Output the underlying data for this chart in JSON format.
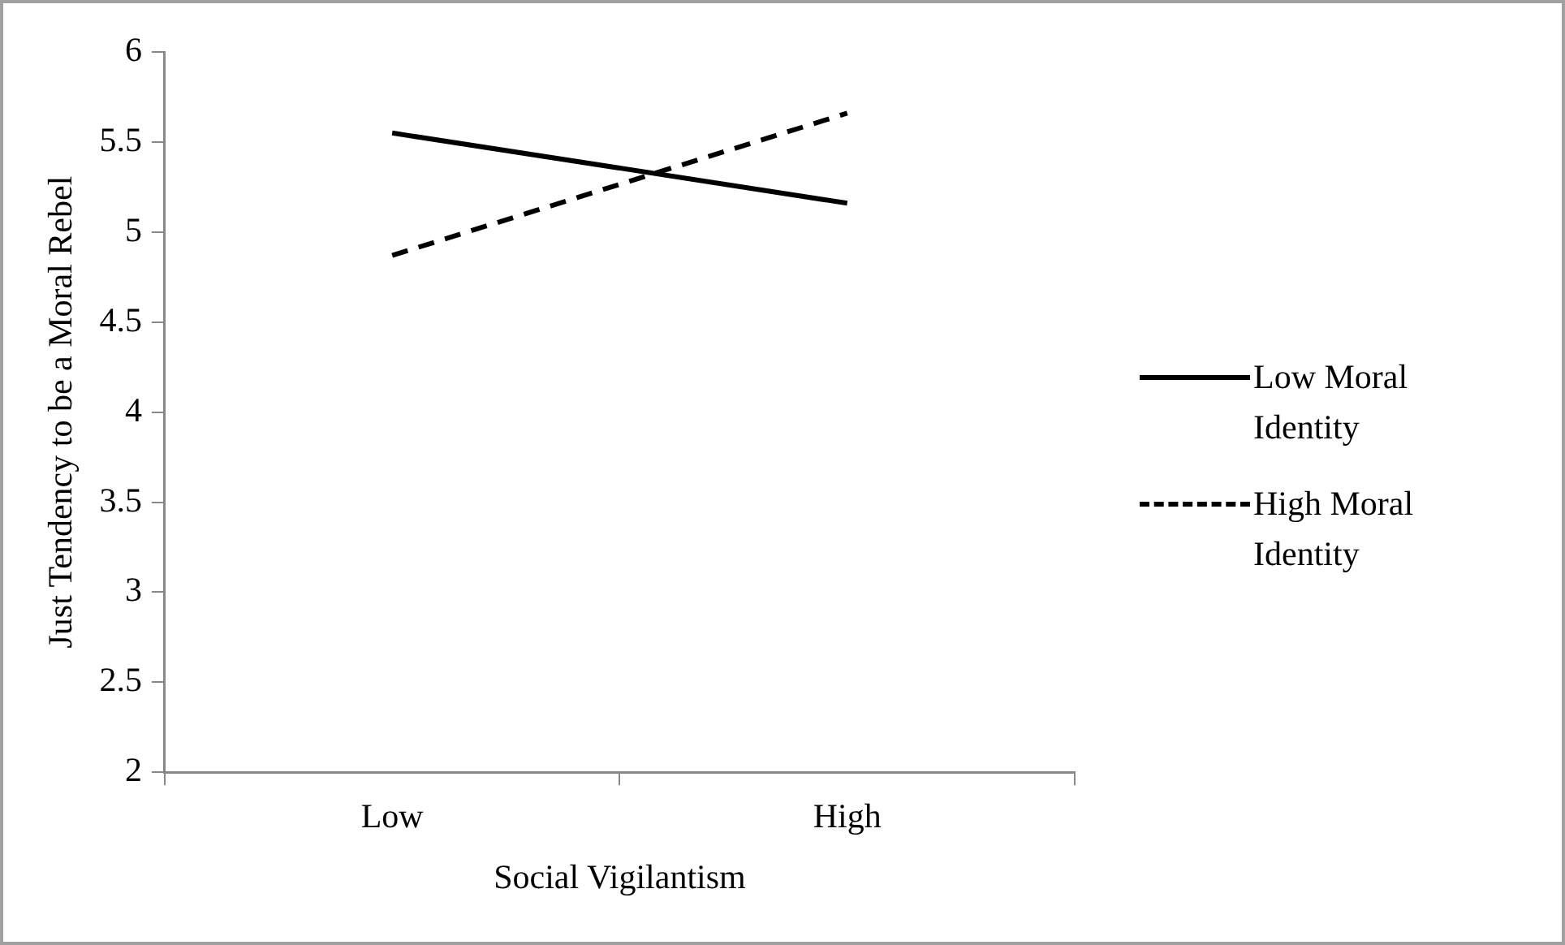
{
  "chart_data": {
    "type": "line",
    "xlabel": "Social Vigilantism",
    "ylabel": "Just Tendency to be a Moral Rebel",
    "categories": [
      "Low",
      "High"
    ],
    "series": [
      {
        "name": "Low Moral Identity",
        "color": "#000000",
        "values": [
          5.55,
          5.16
        ],
        "line_style": "solid"
      },
      {
        "name": "High Moral Identity",
        "color": "#000000",
        "values": [
          4.87,
          5.66
        ],
        "line_style": "dashed"
      }
    ],
    "ylim": [
      2,
      6
    ],
    "yticks": [
      2,
      2.5,
      3,
      3.5,
      4,
      4.5,
      5,
      5.5,
      6
    ],
    "grid": false,
    "legend": "right",
    "marker": "none"
  }
}
